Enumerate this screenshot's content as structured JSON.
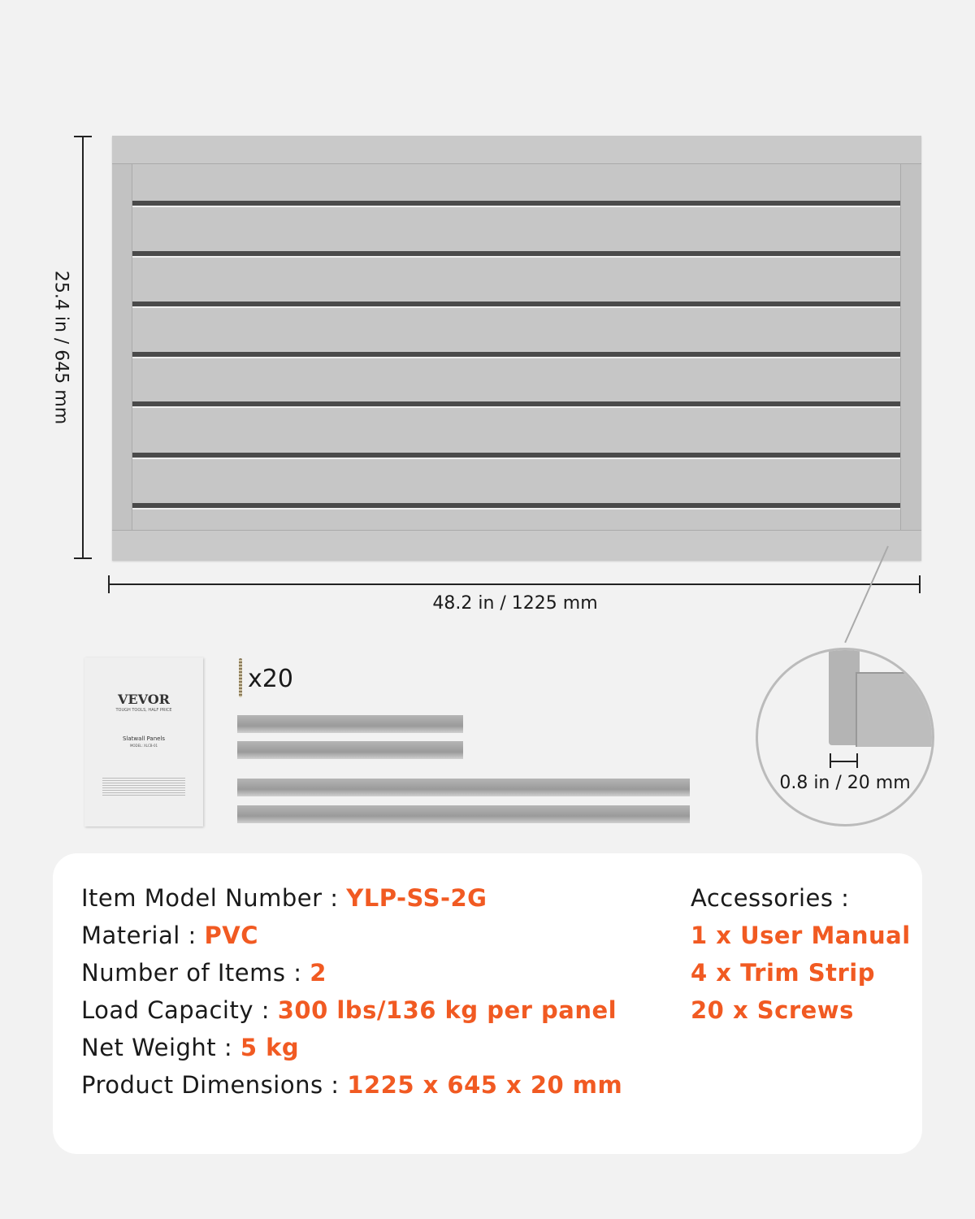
{
  "dimensions": {
    "height_label": "25.4 in / 645 mm",
    "width_label": "48.2 in / 1225 mm",
    "depth_label": "0.8 in / 20 mm"
  },
  "manual": {
    "brand": "VEVOR",
    "tagline": "TOUGH TOOLS, HALF PRICE",
    "title": "Slatwall Panels",
    "model": "MODEL: XLCB-01"
  },
  "screws": {
    "count_label": "x20"
  },
  "colors": {
    "accent": "#f15a22",
    "panel": "#c6c6c6",
    "background": "#f2f2f2"
  },
  "specs": [
    {
      "label": "Item Model Number : ",
      "value": "YLP-SS-2G"
    },
    {
      "label": "Material : ",
      "value": "PVC"
    },
    {
      "label": "Number of Items : ",
      "value": "2"
    },
    {
      "label": "Load Capacity : ",
      "value": "300 lbs/136 kg per panel"
    },
    {
      "label": "Net Weight : ",
      "value": "5 kg"
    },
    {
      "label": "Product Dimensions : ",
      "value": "1225 x 645 x 20 mm"
    }
  ],
  "accessories": {
    "heading": "Accessories :",
    "items": [
      "1 x User Manual",
      "4 x Trim Strip",
      "20 x Screws"
    ]
  }
}
